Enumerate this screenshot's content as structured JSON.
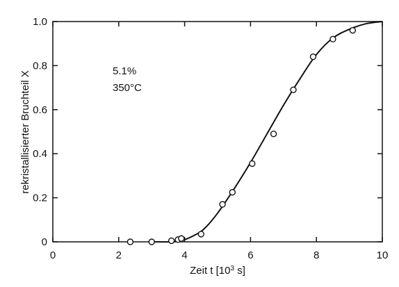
{
  "chart_data": {
    "type": "scatter",
    "title": "",
    "xlabel": "Zeit t [10",
    "xlabel_sup": "3",
    "xlabel_unit": " s]",
    "ylabel": "rekristallisierter Bruchteil  X",
    "xlim": [
      0,
      10
    ],
    "ylim": [
      0,
      1.0
    ],
    "grid": false,
    "legend": "none",
    "x_ticks": [
      0,
      2,
      4,
      6,
      8,
      10
    ],
    "y_ticks": [
      0,
      0.2,
      0.4,
      0.6,
      0.8,
      1.0
    ],
    "x_tick_labels": [
      "0",
      "2",
      "4",
      "6",
      "8",
      "10"
    ],
    "y_tick_labels": [
      "0",
      "0.2",
      "0.4",
      "0.6",
      "0.8",
      "1.0"
    ],
    "annotations": [
      "5.1%",
      "350°C"
    ],
    "series": [
      {
        "kind": "points",
        "marker": "open-circle",
        "x": [
          2.35,
          3.0,
          3.6,
          3.8,
          3.9,
          4.5,
          5.15,
          5.45,
          6.05,
          6.7,
          7.3,
          7.9,
          8.5,
          9.1
        ],
        "y": [
          0.0,
          0.0,
          0.005,
          0.01,
          0.015,
          0.035,
          0.17,
          0.225,
          0.355,
          0.49,
          0.69,
          0.84,
          0.92,
          0.96
        ]
      },
      {
        "kind": "curve",
        "x": [
          3.0,
          3.5,
          3.9,
          4.3,
          4.6,
          5.0,
          5.5,
          6.0,
          6.5,
          7.0,
          7.5,
          8.0,
          8.5,
          9.0,
          9.5,
          10.0
        ],
        "y": [
          0.0,
          0.0,
          0.005,
          0.03,
          0.06,
          0.13,
          0.24,
          0.36,
          0.49,
          0.62,
          0.74,
          0.85,
          0.925,
          0.965,
          0.99,
          1.0
        ]
      }
    ],
    "colors": {
      "axis": "#111111",
      "marker_fill": "#ffffff",
      "curve": "#111111"
    }
  }
}
